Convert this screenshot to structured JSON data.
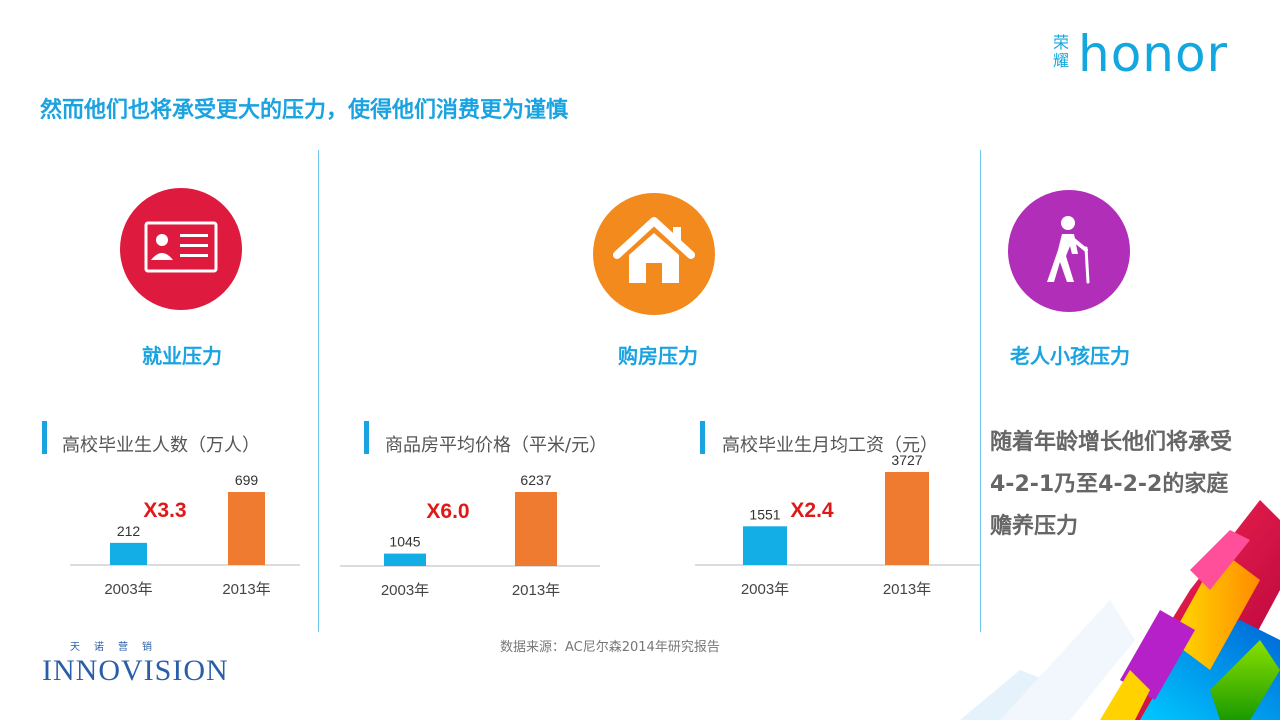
{
  "headline": "然而他们也将承受更大的压力，使得他们消费更为谨慎",
  "logo": {
    "brand_cn": "荣耀",
    "brand": "honor"
  },
  "categories": [
    {
      "label": "就业压力",
      "icon": "id-card-icon",
      "color": "#de1b3e"
    },
    {
      "label": "购房压力",
      "icon": "house-icon",
      "color": "#f28a1e"
    },
    {
      "label": "老人小孩压力",
      "icon": "elderly-walking-icon",
      "color": "#b12eb8"
    }
  ],
  "chart_data": [
    {
      "type": "bar",
      "title": "高校毕业生人数（万人）",
      "categories": [
        "2003年",
        "2013年"
      ],
      "values": [
        212,
        699
      ],
      "multiplier": "X3.3",
      "colors": [
        "#14aee6",
        "#ee7b2f"
      ]
    },
    {
      "type": "bar",
      "title": "商品房平均价格（平米/元）",
      "categories": [
        "2003年",
        "2013年"
      ],
      "values": [
        1045,
        6237
      ],
      "multiplier": "X6.0",
      "colors": [
        "#14aee6",
        "#ee7b2f"
      ]
    },
    {
      "type": "bar",
      "title": "高校毕业生月均工资（元）",
      "categories": [
        "2003年",
        "2013年"
      ],
      "values": [
        1551,
        3727
      ],
      "multiplier": "X2.4",
      "colors": [
        "#14aee6",
        "#ee7b2f"
      ]
    }
  ],
  "family_text": "随着年龄增长他们将承受4-2-1乃至4-2-2的家庭赡养压力",
  "source": "数据来源：AC尼尔森2014年研究报告",
  "footer_logo": {
    "cn": "天诺营销",
    "word": "INNOVISION"
  }
}
